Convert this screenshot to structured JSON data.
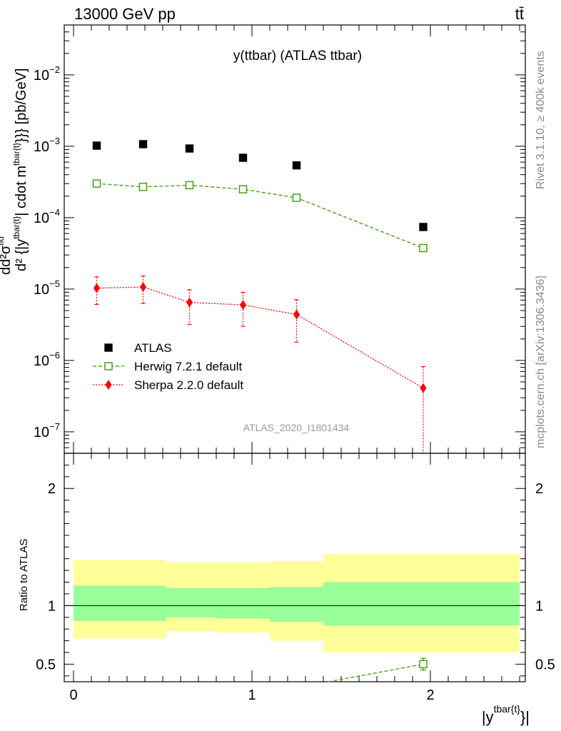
{
  "header": {
    "left": "13000 GeV pp",
    "right": "tt̄"
  },
  "side_labels": {
    "rivet": "Rivet 3.1.10, ≥ 400k events",
    "mcplots": "mcplots.cern.ch [arXiv:1306.3436]"
  },
  "colors": {
    "atlas": "#000000",
    "herwig": "#3a9a0a",
    "sherpa": "#ff0000",
    "band_inner": "#99ff99",
    "band_outer": "#ffff99"
  },
  "chart_data": [
    {
      "type": "scatter",
      "title": "y(ttbar) (ATLAS ttbar)",
      "watermark": "ATLAS_2020_I1801434",
      "ylabel": {
        "frac_num": "d",
        "sig_num": "d²σ",
        "sig_num_sup": "fid",
        "frac_den": "d² {|y",
        "frac_den_sup": "tbar{t}",
        "tail": "| cdot m",
        "tail_sup": "tbar{t}",
        "tail2": "}}} [pb/GeV]"
      },
      "log_y": true,
      "xlim": [
        -0.05,
        2.55
      ],
      "ylim": [
        5e-08,
        0.05
      ],
      "y_ticks": [
        {
          "value": 1e-07,
          "base": "10",
          "exp": "−7"
        },
        {
          "value": 1e-06,
          "base": "10",
          "exp": "−6"
        },
        {
          "value": 1e-05,
          "base": "10",
          "exp": "−5"
        },
        {
          "value": 0.0001,
          "base": "10",
          "exp": "−4"
        },
        {
          "value": 0.001,
          "base": "10",
          "exp": "−3"
        },
        {
          "value": 0.01,
          "base": "10",
          "exp": "−2"
        }
      ],
      "legend": {
        "placement": "lower-left"
      },
      "series": [
        {
          "name": "ATLAS",
          "marker": "filled-square",
          "x": [
            0.13,
            0.39,
            0.65,
            0.95,
            1.25,
            1.96
          ],
          "y": [
            0.00102,
            0.00107,
            0.00093,
            0.00069,
            0.00054,
            7.4e-05
          ]
        },
        {
          "name": "Herwig 7.2.1 default",
          "marker": "open-square",
          "line": "dashed",
          "x": [
            0.13,
            0.39,
            0.65,
            0.95,
            1.25,
            1.96
          ],
          "y": [
            0.0003,
            0.00027,
            0.000285,
            0.00025,
            0.00019,
            3.75e-05
          ]
        },
        {
          "name": "Sherpa 2.2.0 default",
          "marker": "diamond",
          "line": "dotted",
          "x": [
            0.13,
            0.39,
            0.65,
            0.95,
            1.25,
            1.96
          ],
          "y": [
            1.03e-05,
            1.07e-05,
            6.5e-06,
            6e-06,
            4.4e-06,
            4.1e-07
          ],
          "err_low": [
            6.1e-06,
            6.3e-06,
            3.2e-06,
            3e-06,
            1.8e-06,
            1e-08
          ],
          "err_high": [
            1.48e-05,
            1.52e-05,
            9.8e-06,
            9e-06,
            7.1e-06,
            8.2e-07
          ]
        }
      ]
    },
    {
      "type": "scatter",
      "ylabel": "Ratio to ATLAS",
      "xlabel": {
        "base": "|y",
        "sup": "tbar{t}",
        "tail": "}|"
      },
      "xlim": [
        -0.05,
        2.55
      ],
      "ylim": [
        0.35,
        2.3
      ],
      "y_ticks": [
        "0.5",
        "1",
        "2"
      ],
      "x_ticks": [
        "0",
        "1",
        "2"
      ],
      "bands": [
        {
          "x0": 0.0,
          "x1": 0.52,
          "inner": [
            0.87,
            1.17
          ],
          "outer": [
            0.72,
            1.39
          ]
        },
        {
          "x0": 0.52,
          "x1": 0.8,
          "inner": [
            0.9,
            1.15
          ],
          "outer": [
            0.78,
            1.37
          ]
        },
        {
          "x0": 0.8,
          "x1": 1.1,
          "inner": [
            0.89,
            1.15
          ],
          "outer": [
            0.77,
            1.37
          ]
        },
        {
          "x0": 1.1,
          "x1": 1.4,
          "inner": [
            0.86,
            1.16
          ],
          "outer": [
            0.7,
            1.38
          ]
        },
        {
          "x0": 1.4,
          "x1": 2.5,
          "inner": [
            0.83,
            1.2
          ],
          "outer": [
            0.6,
            1.44
          ]
        }
      ],
      "series": [
        {
          "name": "Herwig 7.2.1 default",
          "marker": "open-square",
          "line": "dashed",
          "x": [
            1.25,
            1.96
          ],
          "y": [
            0.3,
            0.5
          ],
          "err_low": [
            0.3,
            0.45
          ],
          "err_high": [
            0.3,
            0.55
          ]
        }
      ]
    }
  ]
}
